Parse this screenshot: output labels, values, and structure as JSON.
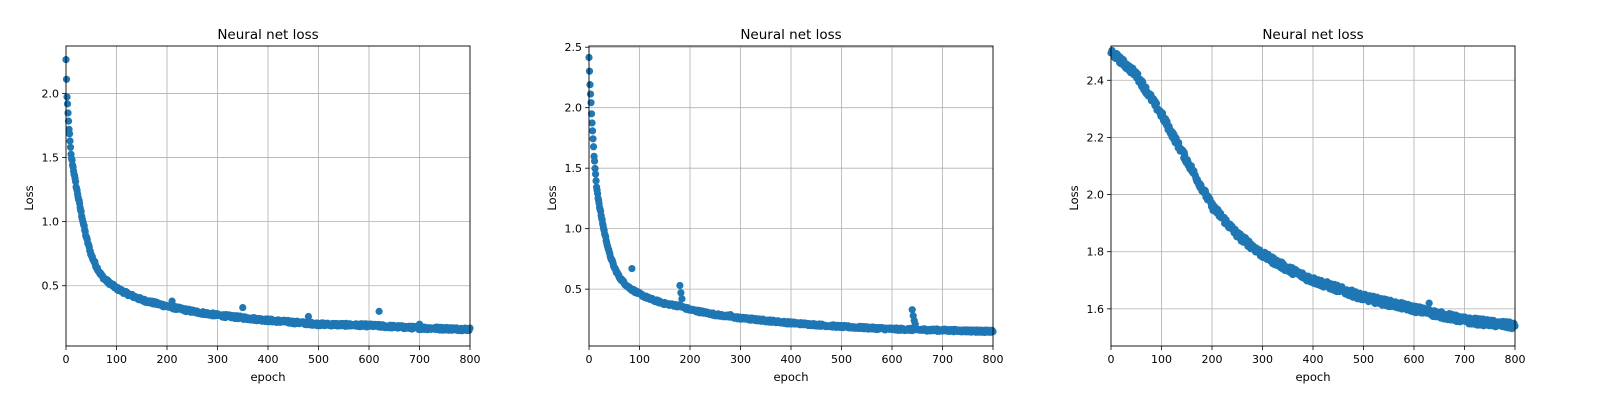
{
  "theme": {
    "marker_color": "#1f77b4",
    "grid_color": "#b0b0b0"
  },
  "chart_data": [
    {
      "type": "scatter",
      "title": "Neural net loss",
      "xlabel": "epoch",
      "ylabel": "Loss",
      "xlim": [
        0,
        800
      ],
      "ylim": [
        0.03,
        2.37
      ],
      "xticks": [
        "0",
        "100",
        "200",
        "300",
        "400",
        "500",
        "600",
        "700",
        "800"
      ],
      "yticks": [
        "0.5",
        "1.0",
        "1.5",
        "2.0"
      ],
      "grid": true,
      "curve": {
        "x": [
          0,
          2,
          5,
          10,
          15,
          20,
          30,
          40,
          50,
          60,
          70,
          80,
          100,
          120,
          150,
          200,
          250,
          300,
          400,
          500,
          600,
          700,
          800
        ],
        "y": [
          2.26,
          1.97,
          1.78,
          1.52,
          1.4,
          1.28,
          1.07,
          0.88,
          0.74,
          0.65,
          0.58,
          0.54,
          0.48,
          0.44,
          0.39,
          0.34,
          0.3,
          0.27,
          0.23,
          0.2,
          0.19,
          0.17,
          0.16
        ]
      },
      "noise": 0.012,
      "outliers": {
        "x": [
          210,
          350,
          480,
          620,
          700
        ],
        "y": [
          0.38,
          0.33,
          0.26,
          0.3,
          0.2
        ]
      }
    },
    {
      "type": "scatter",
      "title": "Neural net loss",
      "xlabel": "epoch",
      "ylabel": "Loss",
      "xlim": [
        0,
        800
      ],
      "ylim": [
        0.03,
        2.51
      ],
      "xticks": [
        "0",
        "100",
        "200",
        "300",
        "400",
        "500",
        "600",
        "700",
        "800"
      ],
      "yticks": [
        "0.5",
        "1.0",
        "1.5",
        "2.0",
        "2.5"
      ],
      "grid": true,
      "curve": {
        "x": [
          0,
          2,
          5,
          10,
          15,
          20,
          30,
          40,
          50,
          60,
          70,
          80,
          100,
          120,
          150,
          180,
          200,
          250,
          300,
          400,
          500,
          600,
          700,
          800
        ],
        "y": [
          2.42,
          2.2,
          1.95,
          1.6,
          1.35,
          1.2,
          0.98,
          0.8,
          0.68,
          0.6,
          0.55,
          0.51,
          0.46,
          0.42,
          0.38,
          0.36,
          0.33,
          0.29,
          0.26,
          0.22,
          0.19,
          0.17,
          0.16,
          0.15
        ]
      },
      "noise": 0.01,
      "outliers": {
        "x": [
          85,
          180,
          182,
          184,
          280,
          640,
          642,
          644,
          646
        ],
        "y": [
          0.67,
          0.53,
          0.47,
          0.42,
          0.29,
          0.33,
          0.28,
          0.24,
          0.21
        ]
      }
    },
    {
      "type": "scatter",
      "title": "Neural net loss",
      "xlabel": "epoch",
      "ylabel": "Loss",
      "xlim": [
        0,
        800
      ],
      "ylim": [
        1.47,
        2.52
      ],
      "xticks": [
        "0",
        "100",
        "200",
        "300",
        "400",
        "500",
        "600",
        "700",
        "800"
      ],
      "yticks": [
        "1.6",
        "1.8",
        "2.0",
        "2.2",
        "2.4"
      ],
      "grid": true,
      "curve": {
        "x": [
          0,
          50,
          100,
          150,
          200,
          250,
          300,
          350,
          400,
          450,
          500,
          550,
          600,
          650,
          700,
          750,
          800
        ],
        "y": [
          2.5,
          2.42,
          2.28,
          2.12,
          1.96,
          1.86,
          1.79,
          1.74,
          1.7,
          1.67,
          1.64,
          1.62,
          1.6,
          1.58,
          1.56,
          1.55,
          1.54
        ]
      },
      "noise": 0.012,
      "outliers": {
        "x": [
          630
        ],
        "y": [
          1.62
        ]
      }
    }
  ]
}
